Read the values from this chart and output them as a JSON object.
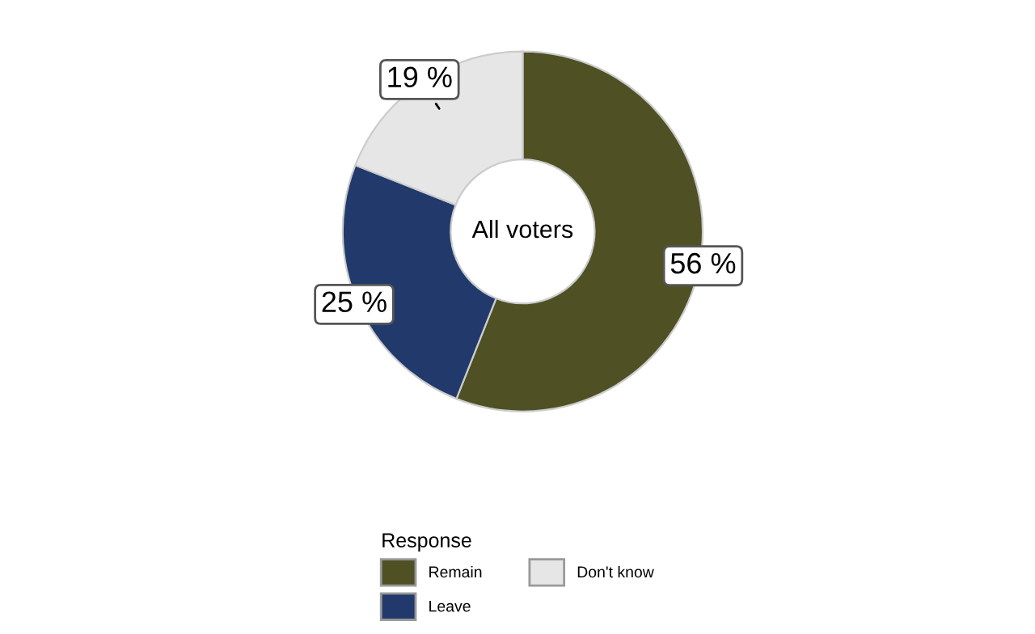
{
  "chart_data": {
    "type": "donut",
    "categories": [
      "Remain",
      "Leave",
      "Don't know"
    ],
    "values": [
      56,
      25,
      19
    ],
    "colors": [
      "#4f5024",
      "#213a6b",
      "#e6e6e6"
    ],
    "value_labels": [
      "56 %",
      "25 %",
      "19 %"
    ],
    "annotations": [
      "All voters"
    ],
    "legend_title": "Response",
    "legend": "bottom"
  }
}
